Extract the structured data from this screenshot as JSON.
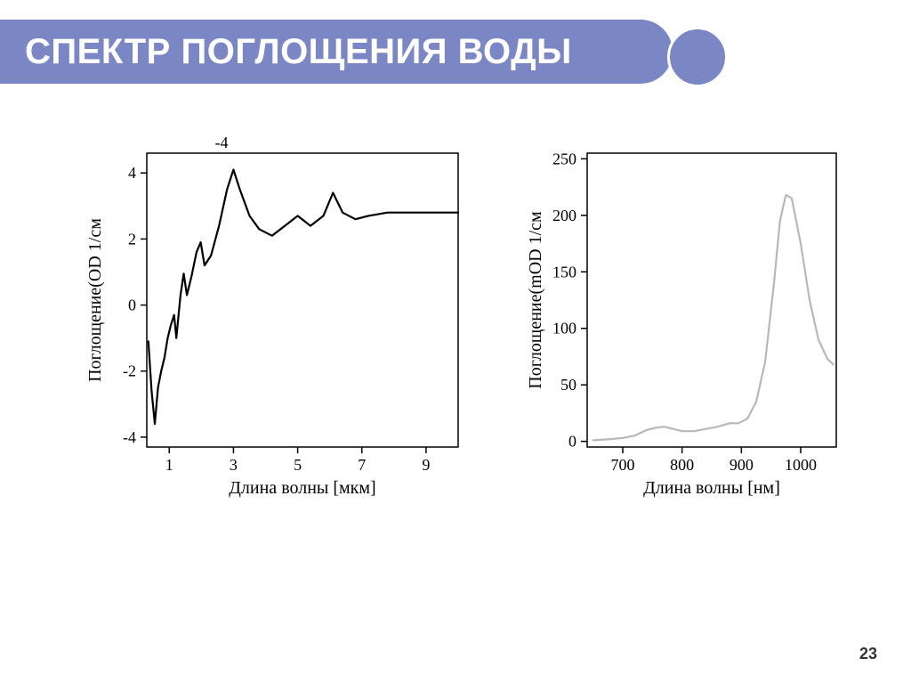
{
  "slide": {
    "title": "СПЕКТР ПОГЛОЩЕНИЯ ВОДЫ",
    "page_number": "23",
    "accent_color": "#7b86c4",
    "frame_border_color": "#5a6a70"
  },
  "chart_left": {
    "type": "line",
    "xlabel": "Длина волны [мкм]",
    "ylabel": "Поглощение(OD 1/см",
    "label_fontsize": 20,
    "tick_fontsize": 18,
    "line_color": "#000000",
    "line_width": 2.2,
    "background_color": "#ffffff",
    "axis_color": "#000000",
    "xlim": [
      0.3,
      10
    ],
    "ylim": [
      -4.3,
      4.6
    ],
    "xticks": [
      1,
      3,
      5,
      7,
      9
    ],
    "yticks": [
      -4,
      -2,
      0,
      2,
      4
    ],
    "y_top_label": "-4",
    "data": [
      {
        "x": 0.35,
        "y": -1.1
      },
      {
        "x": 0.45,
        "y": -2.6
      },
      {
        "x": 0.55,
        "y": -3.6
      },
      {
        "x": 0.65,
        "y": -2.5
      },
      {
        "x": 0.75,
        "y": -2.0
      },
      {
        "x": 0.85,
        "y": -1.6
      },
      {
        "x": 0.95,
        "y": -1.0
      },
      {
        "x": 1.05,
        "y": -0.6
      },
      {
        "x": 1.15,
        "y": -0.3
      },
      {
        "x": 1.22,
        "y": -1.0
      },
      {
        "x": 1.35,
        "y": 0.3
      },
      {
        "x": 1.45,
        "y": 0.95
      },
      {
        "x": 1.55,
        "y": 0.3
      },
      {
        "x": 1.7,
        "y": 0.9
      },
      {
        "x": 1.85,
        "y": 1.6
      },
      {
        "x": 1.98,
        "y": 1.9
      },
      {
        "x": 2.1,
        "y": 1.2
      },
      {
        "x": 2.3,
        "y": 1.5
      },
      {
        "x": 2.55,
        "y": 2.4
      },
      {
        "x": 2.8,
        "y": 3.5
      },
      {
        "x": 3.0,
        "y": 4.1
      },
      {
        "x": 3.2,
        "y": 3.5
      },
      {
        "x": 3.5,
        "y": 2.7
      },
      {
        "x": 3.8,
        "y": 2.3
      },
      {
        "x": 4.2,
        "y": 2.1
      },
      {
        "x": 4.6,
        "y": 2.4
      },
      {
        "x": 5.0,
        "y": 2.7
      },
      {
        "x": 5.4,
        "y": 2.4
      },
      {
        "x": 5.8,
        "y": 2.7
      },
      {
        "x": 6.1,
        "y": 3.4
      },
      {
        "x": 6.4,
        "y": 2.8
      },
      {
        "x": 6.8,
        "y": 2.6
      },
      {
        "x": 7.2,
        "y": 2.7
      },
      {
        "x": 7.8,
        "y": 2.8
      },
      {
        "x": 8.4,
        "y": 2.8
      },
      {
        "x": 9.0,
        "y": 2.8
      },
      {
        "x": 9.6,
        "y": 2.8
      },
      {
        "x": 10.0,
        "y": 2.8
      }
    ]
  },
  "chart_right": {
    "type": "line",
    "xlabel": "Длина волны [нм]",
    "ylabel": "Поглощение(mOD 1/см",
    "label_fontsize": 20,
    "tick_fontsize": 18,
    "line_color": "#b8b8b8",
    "line_width": 2.2,
    "background_color": "#ffffff",
    "axis_color": "#000000",
    "xlim": [
      640,
      1060
    ],
    "ylim": [
      -5,
      255
    ],
    "xticks": [
      700,
      800,
      900,
      1000
    ],
    "yticks": [
      0,
      50,
      100,
      150,
      200,
      250
    ],
    "data": [
      {
        "x": 650,
        "y": 1
      },
      {
        "x": 680,
        "y": 2
      },
      {
        "x": 700,
        "y": 3
      },
      {
        "x": 720,
        "y": 5
      },
      {
        "x": 740,
        "y": 10
      },
      {
        "x": 755,
        "y": 12
      },
      {
        "x": 770,
        "y": 13
      },
      {
        "x": 785,
        "y": 11
      },
      {
        "x": 800,
        "y": 9
      },
      {
        "x": 820,
        "y": 9
      },
      {
        "x": 840,
        "y": 11
      },
      {
        "x": 860,
        "y": 13
      },
      {
        "x": 880,
        "y": 16
      },
      {
        "x": 895,
        "y": 16
      },
      {
        "x": 910,
        "y": 20
      },
      {
        "x": 925,
        "y": 35
      },
      {
        "x": 940,
        "y": 70
      },
      {
        "x": 955,
        "y": 140
      },
      {
        "x": 965,
        "y": 195
      },
      {
        "x": 975,
        "y": 218
      },
      {
        "x": 985,
        "y": 215
      },
      {
        "x": 1000,
        "y": 175
      },
      {
        "x": 1015,
        "y": 125
      },
      {
        "x": 1030,
        "y": 90
      },
      {
        "x": 1045,
        "y": 73
      },
      {
        "x": 1055,
        "y": 68
      }
    ]
  }
}
